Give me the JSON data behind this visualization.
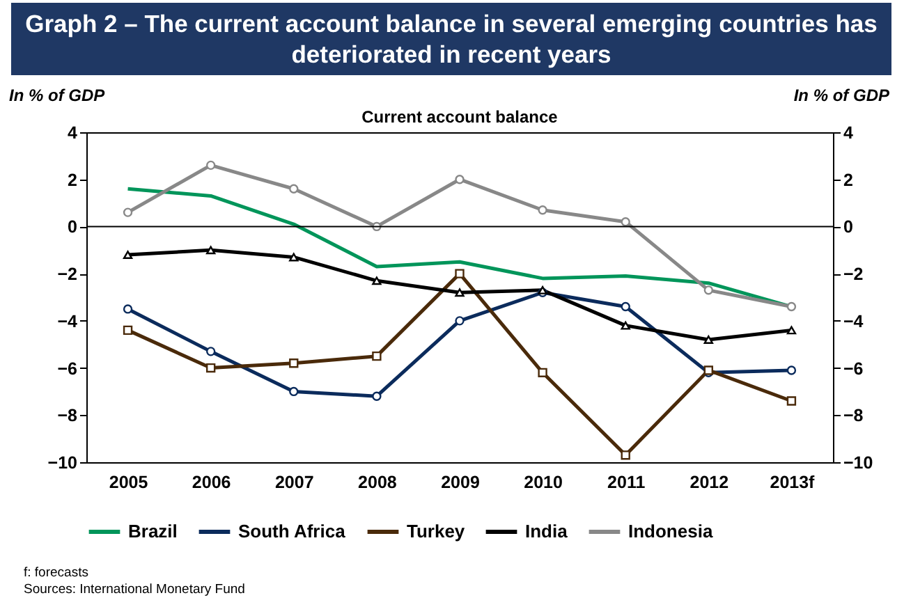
{
  "chart_data": {
    "type": "line",
    "title": "Graph 2 – The current account balance in several emerging countries has deteriorated in recent years",
    "subtitle": "Current account balance",
    "ylabel": "In % of GDP",
    "y2label": "In % of GDP",
    "categories": [
      "2005",
      "2006",
      "2007",
      "2008",
      "2009",
      "2010",
      "2011",
      "2012",
      "2013f"
    ],
    "series": [
      {
        "name": "Brazil",
        "color": "#00955a",
        "marker": "none",
        "values": [
          1.6,
          1.3,
          0.1,
          -1.7,
          -1.5,
          -2.2,
          -2.1,
          -2.4,
          -3.4
        ]
      },
      {
        "name": "South Africa",
        "color": "#0b2b5c",
        "marker": "circle",
        "values": [
          -3.5,
          -5.3,
          -7.0,
          -7.2,
          -4.0,
          -2.8,
          -3.4,
          -6.2,
          -6.1
        ]
      },
      {
        "name": "Turkey",
        "color": "#4a2a0a",
        "marker": "square",
        "values": [
          -4.4,
          -6.0,
          -5.8,
          -5.5,
          -2.0,
          -6.2,
          -9.7,
          -6.1,
          -7.4
        ]
      },
      {
        "name": "India",
        "color": "#000000",
        "marker": "triangle",
        "values": [
          -1.2,
          -1.0,
          -1.3,
          -2.3,
          -2.8,
          -2.7,
          -4.2,
          -4.8,
          -4.4
        ]
      },
      {
        "name": "Indonesia",
        "color": "#888888",
        "marker": "circle",
        "values": [
          0.6,
          2.6,
          1.6,
          0.0,
          2.0,
          0.7,
          0.2,
          -2.7,
          -3.4
        ]
      }
    ],
    "ylim": [
      -10,
      4
    ],
    "yticks": [
      -10,
      -8,
      -6,
      -4,
      -2,
      0,
      2,
      4
    ],
    "y2lim": [
      -10,
      4
    ],
    "y2ticks": [
      -10,
      -8,
      -6,
      -4,
      -2,
      0,
      2,
      4
    ],
    "ref_lines": [
      {
        "axis": "y2",
        "value": 0,
        "color": "#000000"
      }
    ],
    "grid": false,
    "legend": "bottom",
    "annotations": [
      "f: forecasts",
      "Sources: International Monetary Fund"
    ]
  }
}
